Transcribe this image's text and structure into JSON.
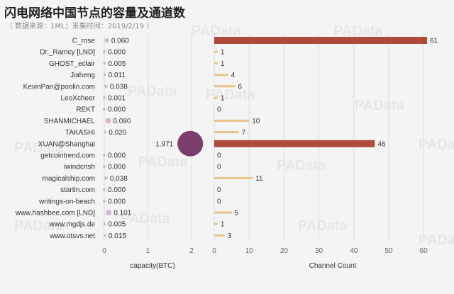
{
  "page": {
    "title": "闪电网络中国节点的容量及通道数",
    "subtitle": "（ 数据来源：1ML；采集时间：2019/2/19 ）",
    "watermark": "PAData"
  },
  "colors": {
    "capacity_dot": "#d7b7d3",
    "capacity_dot_large": "#7d3e6b",
    "channel_bar_small": "#e6c48a",
    "channel_bar_large": "#b04a3a"
  },
  "chart_data": [
    {
      "type": "scatter",
      "title": "",
      "xlabel": "capacity(BTC)",
      "xlim": [
        0,
        2.2
      ],
      "xticks": [
        "0",
        "1",
        "2"
      ],
      "categories": [
        "C_rose",
        "Dr._Ramcy [LND]",
        "GHOST_eclair",
        "Jiaheng",
        "KevinPan@poolin.com",
        "LeoXcheer",
        "REKT",
        "SHANMICHAEL",
        "TAKASHI",
        "XUAN@Shanghai",
        "getcointrend.com",
        "iwindcnsh",
        "magicalship.com",
        "startln.com",
        "writings-on-beach",
        "www.hashbee.com [LND]",
        "www.mgdjs.de",
        "www.otsvs.net"
      ],
      "values": [
        0.06,
        0.0,
        0.005,
        0.011,
        0.038,
        0.001,
        0.0,
        0.09,
        0.02,
        1.971,
        0.0,
        0.0,
        0.038,
        0.0,
        0.0,
        0.101,
        0.005,
        0.015
      ],
      "value_labels": [
        "0.060",
        "0.000",
        "0.005",
        "0.011",
        "0.038",
        "0.001",
        "0.000",
        "0.090",
        "0.020",
        "1.971",
        "0.000",
        "0.000",
        "0.038",
        "0.000",
        "0.000",
        "0.101",
        "0.005",
        "0.015"
      ],
      "encoding": "bubble size proportional to capacity"
    },
    {
      "type": "bar",
      "title": "",
      "xlabel": "Channel Count",
      "xlim": [
        0,
        65
      ],
      "xticks": [
        "0",
        "10",
        "20",
        "30",
        "40",
        "50",
        "60"
      ],
      "categories": [
        "C_rose",
        "Dr._Ramcy [LND]",
        "GHOST_eclair",
        "Jiaheng",
        "KevinPan@poolin.com",
        "LeoXcheer",
        "REKT",
        "SHANMICHAEL",
        "TAKASHI",
        "XUAN@Shanghai",
        "getcointrend.com",
        "iwindcnsh",
        "magicalship.com",
        "startln.com",
        "writings-on-beach",
        "www.hashbee.com [LND]",
        "www.mgdjs.de",
        "www.otsvs.net"
      ],
      "values": [
        61,
        1,
        1,
        4,
        6,
        1,
        0,
        10,
        7,
        46,
        0,
        0,
        11,
        0,
        0,
        5,
        1,
        3
      ],
      "value_labels": [
        "61",
        "1",
        "1",
        "4",
        "6",
        "1",
        "0",
        "10",
        "7",
        "46",
        "0",
        "0",
        "11",
        "0",
        "0",
        "5",
        "1",
        "3"
      ]
    }
  ]
}
